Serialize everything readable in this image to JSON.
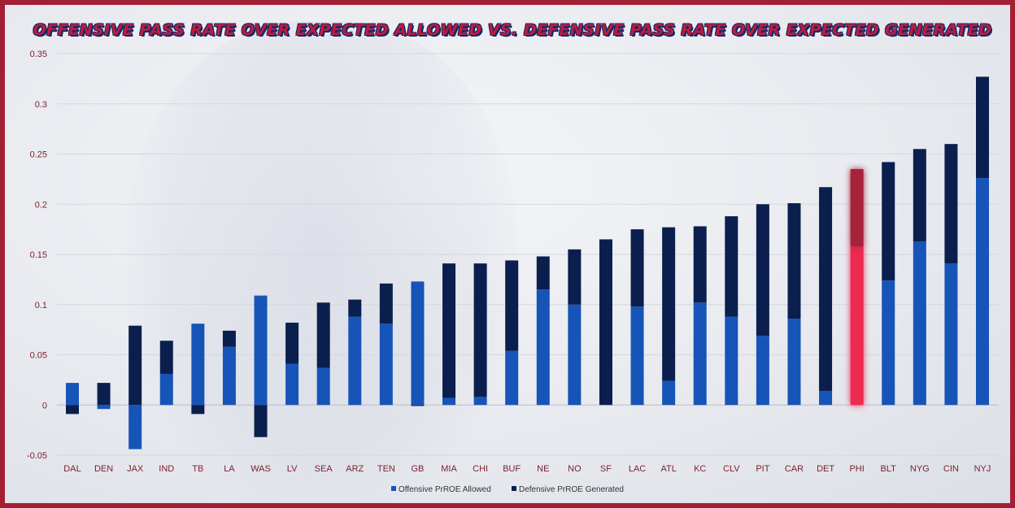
{
  "colors": {
    "offensive": "#1654b8",
    "defensive": "#0a1f4d",
    "highlight_offensive": "#ee2951",
    "highlight_defensive": "#a8243a",
    "frame": "#a51f34",
    "title": "#c01b3a"
  },
  "chart_data": {
    "type": "bar",
    "stacked": true,
    "title": "Offensive Pass Rate Over Expected Allowed vs. Defensive Pass Rate Over Expected Generated",
    "xlabel": "",
    "ylabel": "",
    "ylim": [
      -0.05,
      0.35
    ],
    "yticks": [
      -0.05,
      0,
      0.05,
      0.1,
      0.15,
      0.2,
      0.25,
      0.3,
      0.35
    ],
    "ytick_labels": [
      "-0.05",
      "0",
      "0.05",
      "0.1",
      "0.15",
      "0.2",
      "0.25",
      "0.3",
      "0.35"
    ],
    "grid": true,
    "legend_position": "bottom",
    "highlight_category": "PHI",
    "categories": [
      "DAL",
      "DEN",
      "JAX",
      "IND",
      "TB",
      "LA",
      "WAS",
      "LV",
      "SEA",
      "ARZ",
      "TEN",
      "GB",
      "MIA",
      "CHI",
      "BUF",
      "NE",
      "NO",
      "SF",
      "LAC",
      "ATL",
      "KC",
      "CLV",
      "PIT",
      "CAR",
      "DET",
      "PHI",
      "BLT",
      "NYG",
      "CIN",
      "NYJ"
    ],
    "series": [
      {
        "name": "Offensive PrROE Allowed",
        "values": [
          0.022,
          -0.004,
          -0.044,
          0.031,
          0.081,
          0.058,
          0.109,
          0.041,
          0.037,
          0.088,
          0.081,
          0.123,
          0.007,
          0.008,
          0.054,
          0.115,
          0.1,
          0.0,
          0.098,
          0.024,
          0.102,
          0.088,
          0.069,
          0.086,
          0.014,
          0.158,
          0.124,
          0.163,
          0.141,
          0.226
        ]
      },
      {
        "name": "Defensive PrROE Generated",
        "values": [
          -0.009,
          0.022,
          0.079,
          0.033,
          -0.009,
          0.016,
          -0.032,
          0.041,
          0.065,
          0.017,
          0.04,
          -0.001,
          0.134,
          0.133,
          0.09,
          0.033,
          0.055,
          0.165,
          0.077,
          0.153,
          0.076,
          0.1,
          0.131,
          0.115,
          0.203,
          0.077,
          0.118,
          0.092,
          0.119,
          0.101
        ]
      }
    ]
  }
}
